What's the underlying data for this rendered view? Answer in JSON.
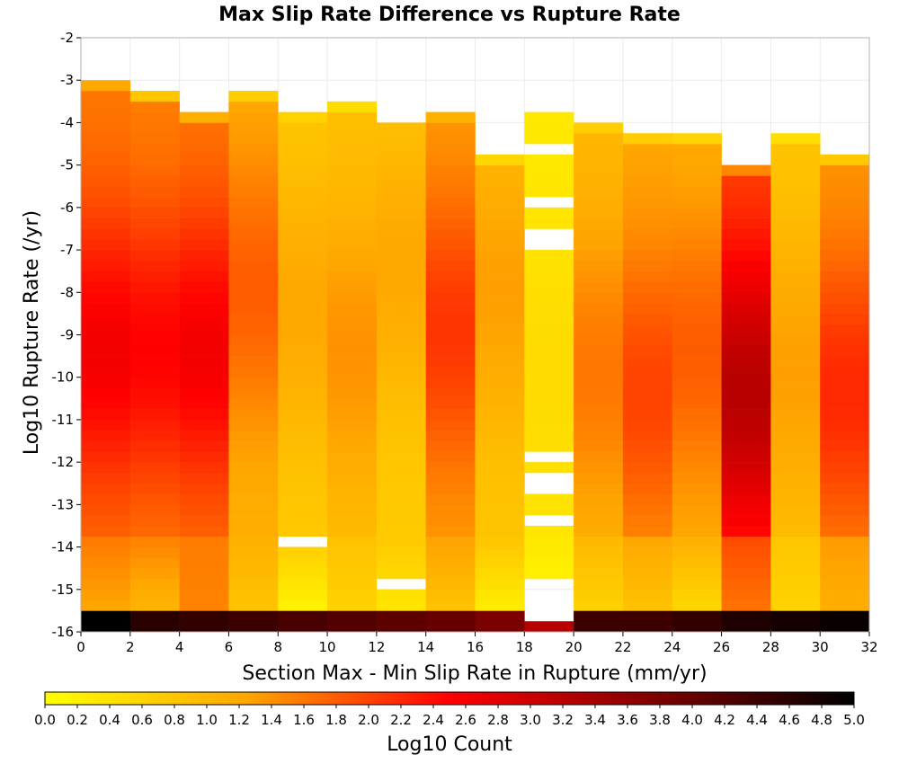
{
  "chart_data": {
    "type": "heatmap",
    "title": "Max Slip Rate Difference vs Rupture Rate",
    "xlabel": "Section Max - Min Slip Rate in Rupture (mm/yr)",
    "ylabel": "Log10 Rupture Rate (/yr)",
    "xlim": [
      0,
      32
    ],
    "ylim": [
      -16,
      -2
    ],
    "x_ticks": [
      "0",
      "2",
      "4",
      "6",
      "8",
      "10",
      "12",
      "14",
      "16",
      "18",
      "20",
      "22",
      "24",
      "26",
      "28",
      "30",
      "32"
    ],
    "y_ticks": [
      "-2",
      "-3",
      "-4",
      "-5",
      "-6",
      "-7",
      "-8",
      "-9",
      "-10",
      "-11",
      "-12",
      "-13",
      "-14",
      "-15",
      "-16"
    ],
    "grid": true,
    "x_bin_width": 2,
    "y_bin_height": 0.25,
    "color_scale": {
      "label": "Log10 Count",
      "min": 0.0,
      "max": 5.0,
      "ticks": [
        "0.0",
        "0.2",
        "0.4",
        "0.6",
        "0.8",
        "1.0",
        "1.2",
        "1.4",
        "1.6",
        "1.8",
        "2.0",
        "2.2",
        "2.4",
        "2.6",
        "2.8",
        "3.0",
        "3.2",
        "3.4",
        "3.6",
        "3.8",
        "4.0",
        "4.2",
        "4.4",
        "4.6",
        "4.8",
        "5.0"
      ],
      "colors": [
        "#ffff00",
        "#ffa500",
        "#ff0000",
        "#800000",
        "#000000"
      ]
    },
    "columns": [
      {
        "x": 1,
        "top": -3.0,
        "peak": 2.6,
        "peak_y": -9.5,
        "edge": 1.0,
        "dip": 1.2,
        "base": 5.0
      },
      {
        "x": 3,
        "top": -3.25,
        "peak": 2.5,
        "peak_y": -9.5,
        "edge": 0.2,
        "dip": 1.0,
        "base": 4.6
      },
      {
        "x": 5,
        "top": -3.75,
        "peak": 2.6,
        "peak_y": -9.5,
        "edge": 0.8,
        "dip": 1.5,
        "base": 4.5
      },
      {
        "x": 7,
        "top": -3.25,
        "peak": 1.8,
        "peak_y": -8.0,
        "edge": 0.4,
        "dip": 0.8,
        "base": 4.4
      },
      {
        "x": 9,
        "top": -3.75,
        "peak": 1.2,
        "peak_y": -8.5,
        "edge": 0.6,
        "dip": 0.1,
        "base": 4.3
      },
      {
        "x": 11,
        "top": -3.5,
        "peak": 1.4,
        "peak_y": -9.5,
        "edge": 0.2,
        "dip": 0.6,
        "base": 4.2
      },
      {
        "x": 13,
        "top": -3.75,
        "peak": 1.2,
        "peak_y": -7.5,
        "edge": 0.3,
        "dip": 0.3,
        "base": 4.1
      },
      {
        "x": 15,
        "top": -3.75,
        "peak": 2.1,
        "peak_y": -9.0,
        "edge": 1.0,
        "dip": 0.8,
        "base": 4.0
      },
      {
        "x": 17,
        "top": -4.75,
        "peak": 1.3,
        "peak_y": -8.0,
        "edge": 0.4,
        "dip": 0.2,
        "base": 3.8
      },
      {
        "x": 19,
        "top": -3.5,
        "peak": 0.5,
        "peak_y": -10.0,
        "edge": 0.2,
        "dip": 0.1,
        "base": 3.2
      },
      {
        "x": 21,
        "top": -4.0,
        "peak": 1.6,
        "peak_y": -10.0,
        "edge": 0.5,
        "dip": 0.6,
        "base": 4.4
      },
      {
        "x": 23,
        "top": -4.25,
        "peak": 2.0,
        "peak_y": -10.5,
        "edge": 0.3,
        "dip": 0.8,
        "base": 4.4
      },
      {
        "x": 25,
        "top": -4.25,
        "peak": 1.8,
        "peak_y": -9.5,
        "edge": 0.2,
        "dip": 0.5,
        "base": 4.5
      },
      {
        "x": 27,
        "top": -5.0,
        "peak": 3.2,
        "peak_y": -10.5,
        "edge": 1.2,
        "dip": 1.6,
        "base": 4.7
      },
      {
        "x": 29,
        "top": -4.25,
        "peak": 1.3,
        "peak_y": -10.0,
        "edge": 0.2,
        "dip": 0.6,
        "base": 4.8
      },
      {
        "x": 31,
        "top": -4.75,
        "peak": 2.2,
        "peak_y": -10.5,
        "edge": 0.3,
        "dip": 1.1,
        "base": 4.9
      }
    ],
    "empty_cells": [
      {
        "x": 9,
        "y": -14.0
      },
      {
        "x": 13,
        "y": -4.0
      },
      {
        "x": 13,
        "y": -15.0
      },
      {
        "x": 19,
        "y": -3.75
      },
      {
        "x": 19,
        "y": -4.75
      },
      {
        "x": 19,
        "y": -6.0
      },
      {
        "x": 19,
        "y": -6.75
      },
      {
        "x": 19,
        "y": -7.0
      },
      {
        "x": 19,
        "y": -12.0
      },
      {
        "x": 19,
        "y": -12.5
      },
      {
        "x": 19,
        "y": -12.75
      },
      {
        "x": 19,
        "y": -13.5
      },
      {
        "x": 19,
        "y": -15.0
      },
      {
        "x": 19,
        "y": -15.25
      },
      {
        "x": 19,
        "y": -15.5
      },
      {
        "x": 19,
        "y": -15.75
      }
    ]
  }
}
